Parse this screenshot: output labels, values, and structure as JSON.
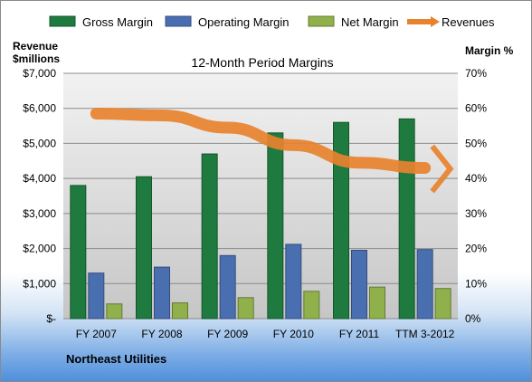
{
  "chart_data": {
    "type": "bar",
    "title": "12-Month Period Margins",
    "company": "Northeast Utilities",
    "categories": [
      "FY 2007",
      "FY 2008",
      "FY 2009",
      "FY 2010",
      "FY 2011",
      "TTM 3-2012"
    ],
    "series": [
      {
        "name": "Gross Margin",
        "axis": "right",
        "unit": "%",
        "color": "#1f7a3f",
        "values": [
          38,
          40.5,
          47,
          53,
          56,
          57
        ]
      },
      {
        "name": "Operating Margin",
        "axis": "right",
        "unit": "%",
        "color": "#4a6fb0",
        "values": [
          13,
          14.7,
          18,
          21.2,
          19.5,
          19.7
        ]
      },
      {
        "name": "Net Margin",
        "axis": "right",
        "unit": "%",
        "color": "#8fb04a",
        "values": [
          4.2,
          4.5,
          6,
          7.8,
          9,
          8.6
        ]
      },
      {
        "name": "Revenues",
        "axis": "left",
        "unit": "$millions",
        "type": "line",
        "color": "#e8822e",
        "values": [
          5850,
          5800,
          5450,
          4950,
          4450,
          4300
        ]
      }
    ],
    "left_axis": {
      "label_line1": "Revenue",
      "label_line2": "$millions",
      "range": [
        0,
        7000
      ],
      "ticks": [
        "$-",
        "$1,000",
        "$2,000",
        "$3,000",
        "$4,000",
        "$5,000",
        "$6,000",
        "$7,000"
      ]
    },
    "right_axis": {
      "label": "Margin %",
      "range": [
        0,
        70
      ],
      "ticks": [
        "0%",
        "10%",
        "20%",
        "30%",
        "40%",
        "50%",
        "60%",
        "70%"
      ]
    },
    "legend_position": "top",
    "grid": true,
    "plot_background": "#bfbfbf"
  }
}
